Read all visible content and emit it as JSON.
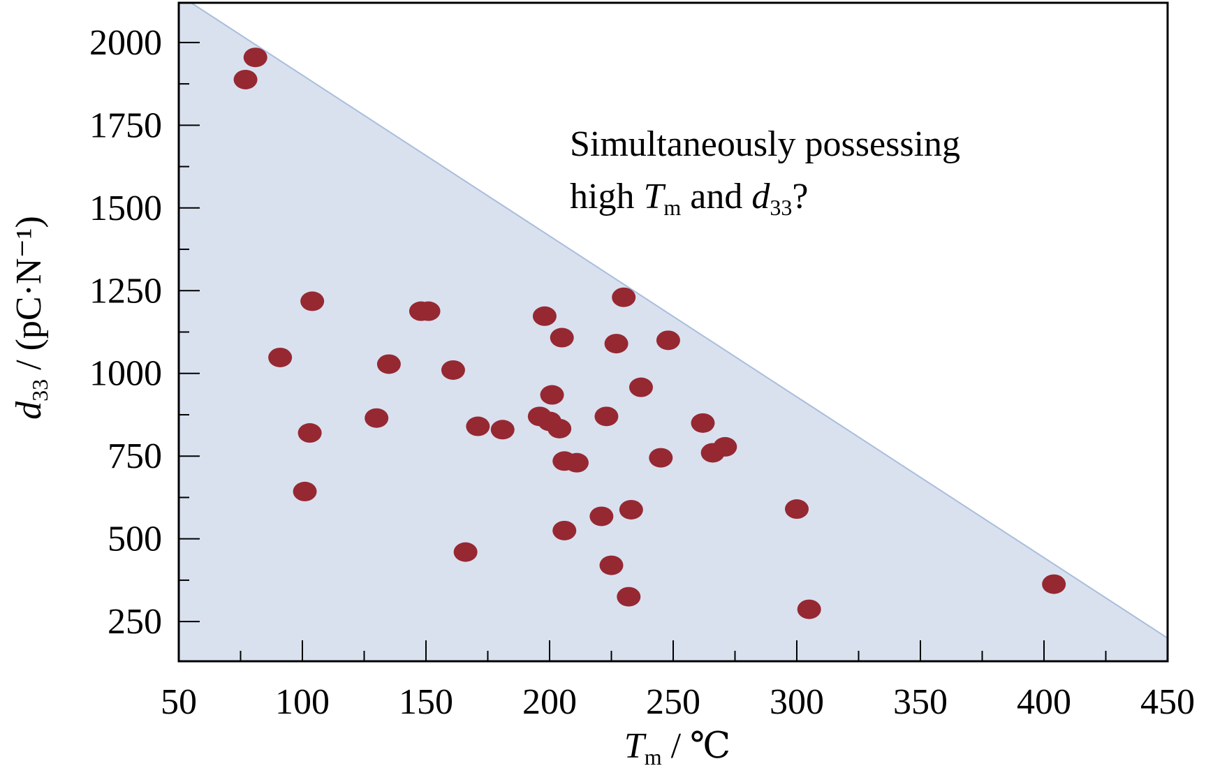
{
  "chart_data": {
    "type": "scatter",
    "title": "",
    "xlabel": {
      "main": "T",
      "sub": "m",
      "rest": " / ℃"
    },
    "ylabel": {
      "main": "d",
      "sub": "33",
      "rest": " / (pC·N⁻¹)"
    },
    "xlim": [
      50,
      450
    ],
    "ylim": [
      130,
      2120
    ],
    "xticks": [
      50,
      100,
      150,
      200,
      250,
      300,
      350,
      400,
      450
    ],
    "yticks": [
      250,
      500,
      750,
      1000,
      1250,
      1500,
      1750,
      2000
    ],
    "x_minor_step": 25,
    "y_minor_step": 125,
    "grid": false,
    "legend": "none",
    "shaded_region": {
      "description": "area below boundary line",
      "boundary": [
        [
          55,
          2130
        ],
        [
          450,
          200
        ]
      ],
      "color": "#d9e1ef",
      "line_color": "#a9bedc"
    },
    "marker_color": "#962832",
    "annotation": {
      "line1": "Simultaneously possessing",
      "line2_a": "high ",
      "line2_T": "T",
      "line2_m": "m",
      "line2_b": " and ",
      "line2_d": "d",
      "line2_33": "33",
      "line2_c": "?"
    },
    "points": [
      {
        "x": 81,
        "y": 1955
      },
      {
        "x": 77,
        "y": 1888
      },
      {
        "x": 104,
        "y": 1218
      },
      {
        "x": 91,
        "y": 1048
      },
      {
        "x": 103,
        "y": 820
      },
      {
        "x": 101,
        "y": 643
      },
      {
        "x": 148,
        "y": 1188
      },
      {
        "x": 151,
        "y": 1188
      },
      {
        "x": 135,
        "y": 1028
      },
      {
        "x": 130,
        "y": 865
      },
      {
        "x": 161,
        "y": 1010
      },
      {
        "x": 171,
        "y": 840
      },
      {
        "x": 181,
        "y": 830
      },
      {
        "x": 166,
        "y": 460
      },
      {
        "x": 198,
        "y": 1173
      },
      {
        "x": 205,
        "y": 1108
      },
      {
        "x": 201,
        "y": 935
      },
      {
        "x": 196,
        "y": 870
      },
      {
        "x": 200,
        "y": 855
      },
      {
        "x": 204,
        "y": 833
      },
      {
        "x": 206,
        "y": 735
      },
      {
        "x": 211,
        "y": 730
      },
      {
        "x": 206,
        "y": 525
      },
      {
        "x": 221,
        "y": 568
      },
      {
        "x": 225,
        "y": 420
      },
      {
        "x": 230,
        "y": 1230
      },
      {
        "x": 227,
        "y": 1090
      },
      {
        "x": 223,
        "y": 870
      },
      {
        "x": 233,
        "y": 588
      },
      {
        "x": 232,
        "y": 325
      },
      {
        "x": 237,
        "y": 958
      },
      {
        "x": 248,
        "y": 1100
      },
      {
        "x": 245,
        "y": 745
      },
      {
        "x": 262,
        "y": 850
      },
      {
        "x": 266,
        "y": 760
      },
      {
        "x": 271,
        "y": 778
      },
      {
        "x": 300,
        "y": 590
      },
      {
        "x": 305,
        "y": 287
      },
      {
        "x": 404,
        "y": 363
      }
    ]
  }
}
